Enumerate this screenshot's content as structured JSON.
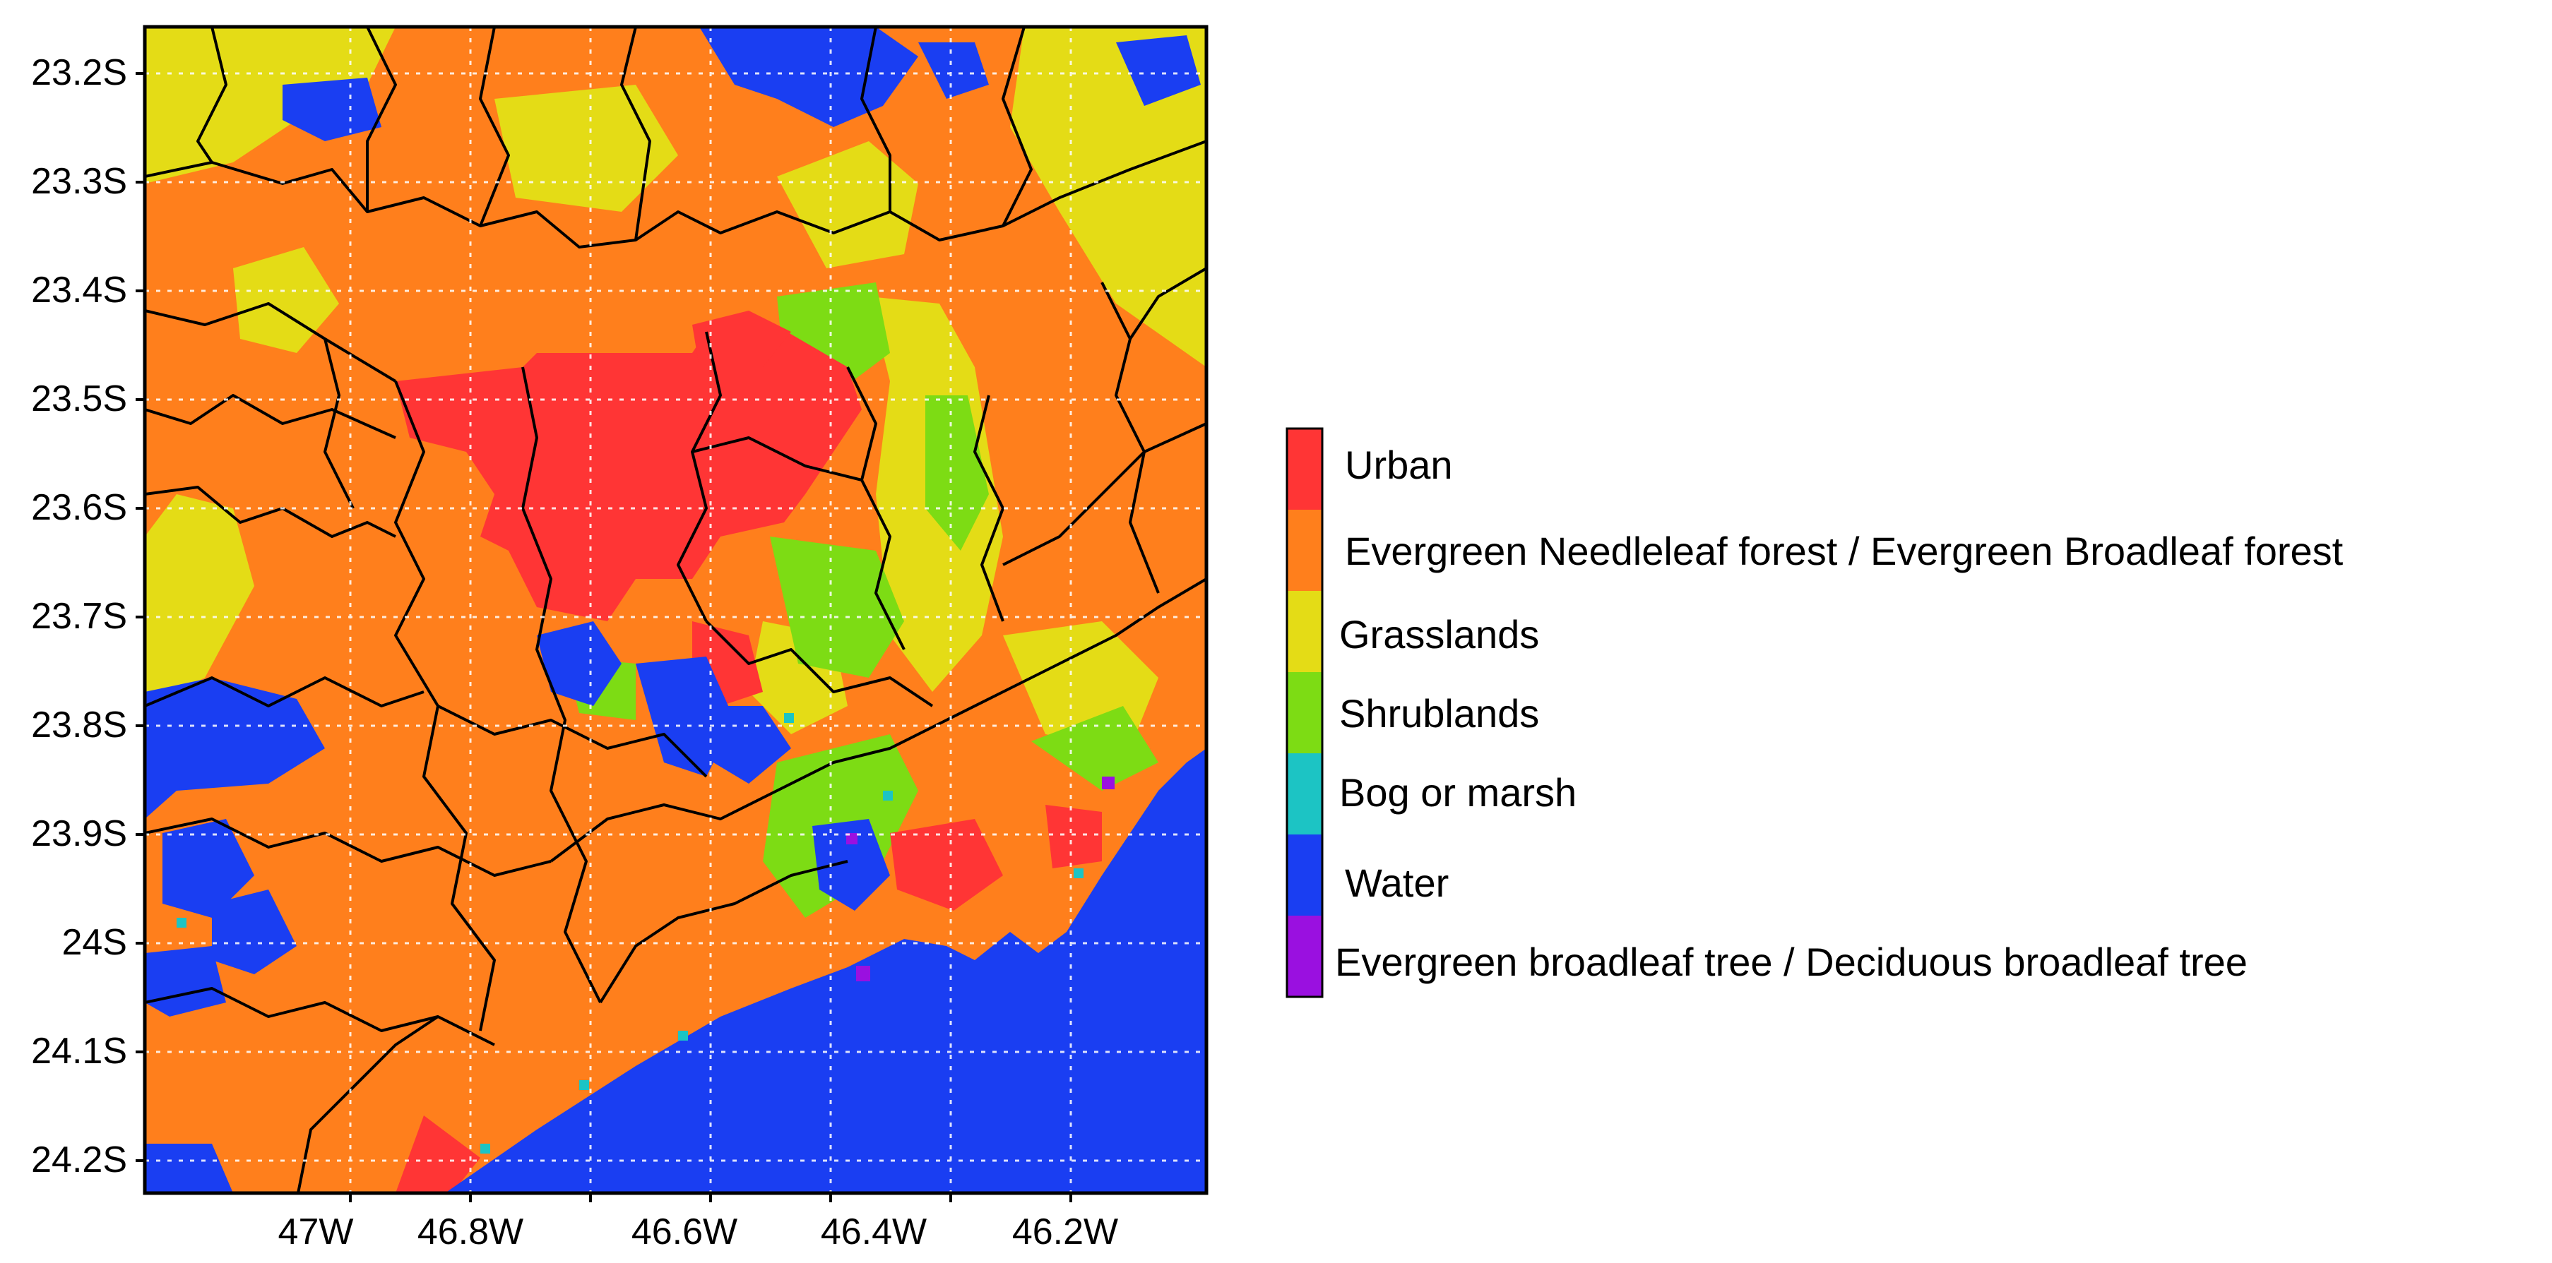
{
  "map": {
    "y_axis": {
      "ticks": [
        "23.2S",
        "23.3S",
        "23.4S",
        "23.5S",
        "23.6S",
        "23.7S",
        "23.8S",
        "23.9S",
        "24S",
        "24.1S",
        "24.2S"
      ]
    },
    "x_axis": {
      "ticks": [
        "47W",
        "46.8W",
        "46.6W",
        "46.4W",
        "46.2W"
      ]
    },
    "grid": true
  },
  "legend": {
    "items": [
      {
        "label": "Urban",
        "color": "#ff3535"
      },
      {
        "label": "Evergreen Needleleaf forest / Evergreen Broadleaf forest",
        "color": "#ff7f1c"
      },
      {
        "label": "Grasslands",
        "color": "#e4dc16"
      },
      {
        "label": "Shrublands",
        "color": "#7ddc14"
      },
      {
        "label": "Bog or marsh",
        "color": "#1cc4c4"
      },
      {
        "label": "Water",
        "color": "#1a3ef2"
      },
      {
        "label": "Evergreen broadleaf tree / Deciduous broadleaf tree",
        "color": "#9a10e0"
      }
    ]
  }
}
